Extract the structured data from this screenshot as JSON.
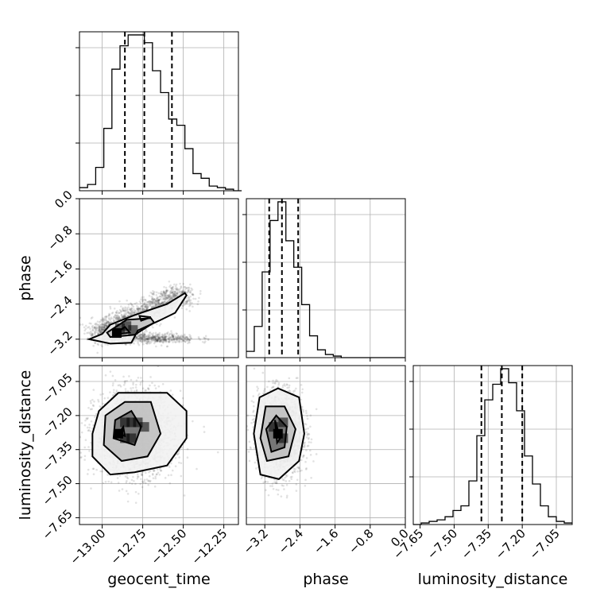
{
  "chart_data": {
    "type": "corner",
    "parameters": [
      {
        "key": "geocent_time",
        "label": "geocent_time",
        "range": [
          -13.14,
          -12.16
        ],
        "ticks": [
          -13.0,
          -12.75,
          -12.5,
          -12.25
        ],
        "tick_labels": [
          "−13.00",
          "−12.75",
          "−12.50",
          "−12.25"
        ],
        "quantiles": [
          -12.86,
          -12.74,
          -12.57
        ],
        "histogram": {
          "bin_edges": [
            -13.14,
            -13.09,
            -13.04,
            -12.99,
            -12.94,
            -12.89,
            -12.84,
            -12.79,
            -12.74,
            -12.69,
            -12.64,
            -12.59,
            -12.54,
            -12.49,
            -12.44,
            -12.39,
            -12.34,
            -12.29,
            -12.24,
            -12.19,
            -12.14
          ],
          "counts": [
            2,
            4,
            15,
            40,
            78,
            93,
            100,
            100,
            95,
            77,
            63,
            46,
            42,
            27,
            11,
            8,
            3,
            2,
            1,
            0
          ]
        },
        "hist_ymax": 102
      },
      {
        "key": "phase",
        "label": "phase",
        "range": [
          -3.62,
          0.0
        ],
        "ticks": [
          -3.2,
          -2.4,
          -1.6,
          -0.8,
          0.0
        ],
        "tick_labels": [
          "−3.2",
          "−2.4",
          "−1.6",
          "−0.8",
          "0.0"
        ],
        "quantiles": [
          -3.1,
          -2.81,
          -2.44
        ],
        "histogram": {
          "bin_edges": [
            -3.62,
            -3.44,
            -3.26,
            -3.08,
            -2.9,
            -2.72,
            -2.54,
            -2.36,
            -2.18,
            -2.0,
            -1.82,
            -1.64,
            -1.46,
            -1.28,
            -1.1,
            -0.92,
            -0.74,
            -0.56,
            -0.38,
            -0.2,
            -0.02
          ],
          "counts": [
            4,
            20,
            55,
            88,
            100,
            75,
            58,
            34,
            14,
            5,
            2,
            1,
            0,
            0,
            0,
            0,
            0,
            0,
            0,
            0
          ]
        },
        "hist_ymax": 102
      },
      {
        "key": "luminosity_distance",
        "label": "luminosity_distance",
        "range": [
          -7.68,
          -6.98
        ],
        "ticks": [
          -7.65,
          -7.5,
          -7.35,
          -7.2,
          -7.05
        ],
        "tick_labels": [
          "−7.65",
          "−7.50",
          "−7.35",
          "−7.20",
          "−7.05"
        ],
        "quantiles": [
          -7.38,
          -7.29,
          -7.2
        ],
        "histogram": {
          "bin_edges": [
            -7.68,
            -7.645,
            -7.61,
            -7.575,
            -7.54,
            -7.505,
            -7.47,
            -7.435,
            -7.4,
            -7.365,
            -7.33,
            -7.295,
            -7.26,
            -7.225,
            -7.19,
            -7.155,
            -7.12,
            -7.085,
            -7.05,
            -7.015,
            -6.98
          ],
          "counts": [
            0,
            1,
            2,
            3,
            5,
            9,
            12,
            28,
            57,
            80,
            90,
            100,
            91,
            73,
            44,
            26,
            12,
            5,
            2,
            1
          ]
        },
        "hist_ymax": 102
      }
    ],
    "pairs": [
      {
        "x": "geocent_time",
        "y": "phase",
        "contours": [
          [
            [
              -13.0,
              -3.08
            ],
            [
              -12.95,
              -2.87
            ],
            [
              -12.8,
              -2.65
            ],
            [
              -12.6,
              -2.4
            ],
            [
              -12.49,
              -2.15
            ],
            [
              -12.48,
              -2.2
            ],
            [
              -12.55,
              -2.6
            ],
            [
              -12.65,
              -2.78
            ],
            [
              -12.78,
              -3.0
            ],
            [
              -12.82,
              -3.28
            ],
            [
              -12.95,
              -3.3
            ],
            [
              -13.08,
              -3.2
            ],
            [
              -13.0,
              -3.08
            ]
          ],
          [
            [
              -12.97,
              -3.05
            ],
            [
              -12.85,
              -2.76
            ],
            [
              -12.7,
              -2.72
            ],
            [
              -12.68,
              -2.82
            ],
            [
              -12.8,
              -3.1
            ],
            [
              -12.95,
              -3.15
            ],
            [
              -12.97,
              -3.05
            ]
          ],
          [
            [
              -12.93,
              -3.1
            ],
            [
              -12.86,
              -2.92
            ],
            [
              -12.83,
              -3.05
            ],
            [
              -12.93,
              -3.1
            ]
          ],
          [
            [
              -12.77,
              -2.67
            ],
            [
              -12.7,
              -2.7
            ],
            [
              -12.76,
              -2.78
            ],
            [
              -12.77,
              -2.67
            ]
          ]
        ],
        "density_cells": [
          [
            -12.91,
            -3.06
          ],
          [
            -12.89,
            -2.95
          ],
          [
            -12.85,
            -2.9
          ],
          [
            -12.81,
            -2.99
          ]
        ],
        "cluster_main": {
          "start": [
            -12.98,
            -3.06
          ],
          "end": [
            -12.5,
            -2.12
          ],
          "spread_x": 0.06,
          "spread_y": 0.12
        },
        "cluster_tail": {
          "center": [
            -12.68,
            -3.18
          ],
          "spread_x": 0.1,
          "spread_y": 0.06
        },
        "sample_count": 2400
      },
      {
        "x": "geocent_time",
        "y": "luminosity_distance",
        "contours": [
          [
            [
              -13.06,
              -7.38
            ],
            [
              -13.06,
              -7.28
            ],
            [
              -13.02,
              -7.18
            ],
            [
              -12.9,
              -7.1
            ],
            [
              -12.6,
              -7.1
            ],
            [
              -12.48,
              -7.18
            ],
            [
              -12.48,
              -7.3
            ],
            [
              -12.6,
              -7.42
            ],
            [
              -12.8,
              -7.45
            ],
            [
              -12.95,
              -7.46
            ],
            [
              -13.06,
              -7.38
            ]
          ],
          [
            [
              -12.99,
              -7.33
            ],
            [
              -12.98,
              -7.2
            ],
            [
              -12.86,
              -7.14
            ],
            [
              -12.7,
              -7.14
            ],
            [
              -12.64,
              -7.28
            ],
            [
              -12.72,
              -7.38
            ],
            [
              -12.88,
              -7.4
            ],
            [
              -12.99,
              -7.33
            ]
          ],
          [
            [
              -12.93,
              -7.3
            ],
            [
              -12.92,
              -7.22
            ],
            [
              -12.82,
              -7.18
            ],
            [
              -12.76,
              -7.25
            ],
            [
              -12.8,
              -7.33
            ],
            [
              -12.93,
              -7.3
            ]
          ],
          [
            [
              -12.9,
              -7.28
            ],
            [
              -12.87,
              -7.25
            ],
            [
              -12.86,
              -7.29
            ],
            [
              -12.9,
              -7.28
            ]
          ]
        ],
        "density_cells": [
          [
            -12.9,
            -7.28
          ],
          [
            -12.86,
            -7.23
          ],
          [
            -12.82,
            -7.23
          ],
          [
            -12.82,
            -7.3
          ],
          [
            -12.78,
            -7.23
          ],
          [
            -12.74,
            -7.25
          ],
          [
            -12.86,
            -7.3
          ]
        ],
        "cluster_main": {
          "center": [
            -12.8,
            -7.28
          ],
          "spread_x": 0.12,
          "spread_y": 0.09
        },
        "sample_count": 2600
      },
      {
        "x": "phase",
        "y": "luminosity_distance",
        "contours": [
          [
            [
              -3.45,
              -7.28
            ],
            [
              -3.32,
              -7.12
            ],
            [
              -2.9,
              -7.08
            ],
            [
              -2.42,
              -7.12
            ],
            [
              -2.3,
              -7.28
            ],
            [
              -2.42,
              -7.4
            ],
            [
              -2.88,
              -7.48
            ],
            [
              -3.3,
              -7.46
            ],
            [
              -3.45,
              -7.28
            ]
          ],
          [
            [
              -3.3,
              -7.3
            ],
            [
              -3.18,
              -7.16
            ],
            [
              -2.75,
              -7.16
            ],
            [
              -2.5,
              -7.26
            ],
            [
              -2.66,
              -7.38
            ],
            [
              -3.15,
              -7.4
            ],
            [
              -3.3,
              -7.3
            ]
          ],
          [
            [
              -3.17,
              -7.26
            ],
            [
              -2.94,
              -7.2
            ],
            [
              -2.7,
              -7.25
            ],
            [
              -2.75,
              -7.34
            ],
            [
              -3.05,
              -7.36
            ],
            [
              -3.17,
              -7.26
            ]
          ],
          [
            [
              -2.97,
              -7.22
            ],
            [
              -2.85,
              -7.3
            ],
            [
              -2.92,
              -7.32
            ],
            [
              -2.97,
              -7.22
            ]
          ]
        ],
        "density_cells": [
          [
            -2.9,
            -7.28
          ],
          [
            -2.78,
            -7.23
          ],
          [
            -2.78,
            -7.3
          ],
          [
            -3.0,
            -7.25
          ]
        ],
        "cluster_main": {
          "center": [
            -2.85,
            -7.28
          ],
          "spread_x": 0.25,
          "spread_y": 0.09
        },
        "sample_count": 2600
      }
    ]
  }
}
